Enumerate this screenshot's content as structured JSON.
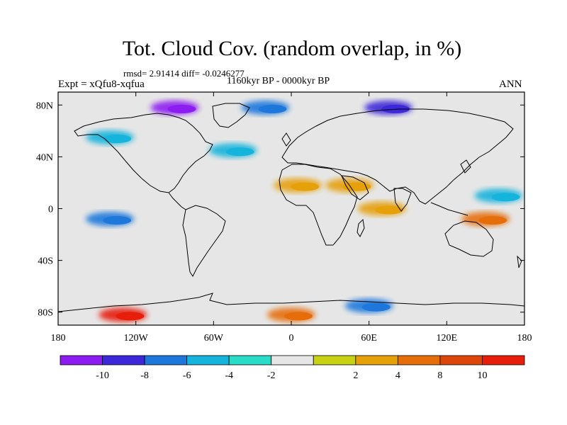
{
  "title": "Tot. Cloud Cov. (random overlap, in %)",
  "stats_text": "rmsd= 2.91414 diff= -0.0246277",
  "period_text": "1160kyr BP - 0000kyr BP",
  "experiment_text": "Expt = xQfu8-xqfua",
  "season_text": "ANN",
  "map": {
    "projection": "cylindrical-equidistant",
    "lon_range": [
      -180,
      180
    ],
    "lat_range": [
      -90,
      90
    ],
    "x_ticks": [
      {
        "lon": -180,
        "label": "180"
      },
      {
        "lon": -120,
        "label": "120W"
      },
      {
        "lon": -60,
        "label": "60W"
      },
      {
        "lon": 0,
        "label": "0"
      },
      {
        "lon": 60,
        "label": "60E"
      },
      {
        "lon": 120,
        "label": "120E"
      },
      {
        "lon": 180,
        "label": "180"
      }
    ],
    "y_ticks": [
      {
        "lat": 80,
        "label": "80N"
      },
      {
        "lat": 40,
        "label": "40N"
      },
      {
        "lat": 0,
        "label": "0"
      },
      {
        "lat": -40,
        "label": "40S"
      },
      {
        "lat": -80,
        "label": "80S"
      }
    ]
  },
  "colorbar": {
    "colors": [
      "#8c1cf0",
      "#3c28d8",
      "#1e78dc",
      "#14b4dc",
      "#28dcc8",
      "#e6e6e6",
      "#c8d214",
      "#e6a00a",
      "#e66e0a",
      "#dc460a",
      "#e61e0a"
    ],
    "labels": [
      "-10",
      "-8",
      "-6",
      "-4",
      "-2",
      "2",
      "4",
      "8",
      "10"
    ]
  },
  "anomaly_regions": [
    {
      "name": "arctic-north-america",
      "lon": -90,
      "lat": 78,
      "value": -11
    },
    {
      "name": "arctic-siberia",
      "lon": 75,
      "lat": 78,
      "value": -9
    },
    {
      "name": "greenland-sea",
      "lon": -20,
      "lat": 78,
      "value": -6
    },
    {
      "name": "north-pacific",
      "lon": -140,
      "lat": 55,
      "value": -4
    },
    {
      "name": "north-atlantic",
      "lon": -45,
      "lat": 45,
      "value": -4
    },
    {
      "name": "sahara",
      "lon": 5,
      "lat": 18,
      "value": 7
    },
    {
      "name": "arabia",
      "lon": 45,
      "lat": 18,
      "value": 7
    },
    {
      "name": "indian-ocean",
      "lon": 70,
      "lat": 0,
      "value": 5
    },
    {
      "name": "western-pacific",
      "lon": 150,
      "lat": -8,
      "value": 8
    },
    {
      "name": "eastern-pacific",
      "lon": -140,
      "lat": -8,
      "value": -7
    },
    {
      "name": "central-pacific",
      "lon": 160,
      "lat": 10,
      "value": -5
    },
    {
      "name": "southern-ocean-pacific",
      "lon": -130,
      "lat": -82,
      "value": 12
    },
    {
      "name": "southern-ocean-indian",
      "lon": 60,
      "lat": -75,
      "value": -6
    },
    {
      "name": "antarctic-atlantic",
      "lon": 0,
      "lat": -82,
      "value": 8
    }
  ]
}
